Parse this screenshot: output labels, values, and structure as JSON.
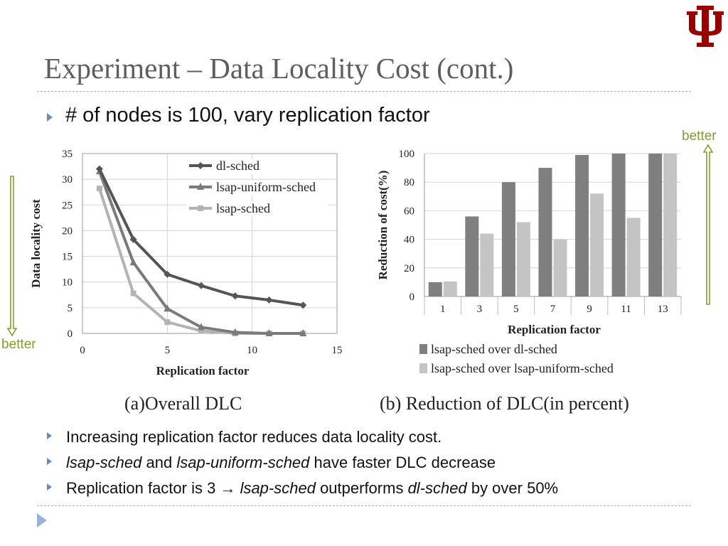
{
  "slide": {
    "title": "Experiment – Data Locality Cost (cont.)",
    "main_bullet": "# of nodes is 100, vary replication factor",
    "better_label": "better",
    "sub_bullets": [
      {
        "parts": [
          {
            "text": "Increasing replication factor reduces data locality cost.",
            "italic": false
          }
        ]
      },
      {
        "parts": [
          {
            "text": "lsap-sched",
            "italic": true
          },
          {
            "text": " and ",
            "italic": false
          },
          {
            "text": "lsap-uniform-sched",
            "italic": true
          },
          {
            "text": " have faster DLC decrease",
            "italic": false
          }
        ]
      },
      {
        "parts": [
          {
            "text": "Replication factor is 3 ",
            "italic": false
          },
          {
            "text": "→",
            "italic": false
          },
          {
            "text": " ",
            "italic": false
          },
          {
            "text": "lsap-sched",
            "italic": true
          },
          {
            "text": " outperforms ",
            "italic": false
          },
          {
            "text": "dl-sched",
            "italic": true
          },
          {
            "text": " by over 50%",
            "italic": false
          }
        ]
      }
    ],
    "logo_color": "#990000",
    "better_color": "#8a9a2b"
  },
  "chart_data": [
    {
      "type": "line",
      "caption": "(a)Overall DLC",
      "xlabel": "Replication factor",
      "ylabel": "Data locality  cost",
      "xlim": [
        0,
        15
      ],
      "ylim": [
        0,
        35
      ],
      "xticks": [
        0,
        5,
        10,
        15
      ],
      "yticks": [
        0,
        5,
        10,
        15,
        20,
        25,
        30,
        35
      ],
      "grid": true,
      "legend": "top-right",
      "series": [
        {
          "name": "dl-sched",
          "color": "#555555",
          "marker": "diamond",
          "points": [
            [
              1,
              32
            ],
            [
              3,
              18.3
            ],
            [
              5,
              11.5
            ],
            [
              7,
              9.3
            ],
            [
              9,
              7.3
            ],
            [
              11,
              6.5
            ],
            [
              13,
              5.5
            ]
          ]
        },
        {
          "name": "lsap-uniform-sched",
          "color": "#7a7a7a",
          "marker": "triangle",
          "points": [
            [
              1,
              31.5
            ],
            [
              3,
              13.8
            ],
            [
              5,
              4.8
            ],
            [
              7,
              1.2
            ],
            [
              9,
              0.2
            ],
            [
              11,
              0
            ],
            [
              13,
              0
            ]
          ]
        },
        {
          "name": "lsap-sched",
          "color": "#b3b3b3",
          "marker": "square",
          "points": [
            [
              1,
              28.2
            ],
            [
              3,
              7.8
            ],
            [
              5,
              2.2
            ],
            [
              7,
              0.5
            ],
            [
              9,
              0
            ],
            [
              11,
              0
            ],
            [
              13,
              0
            ]
          ]
        }
      ]
    },
    {
      "type": "bar",
      "caption": "(b) Reduction of DLC(in percent)",
      "xlabel": "Replication factor",
      "ylabel": "Reduction of cost(%)",
      "ylim": [
        0,
        100
      ],
      "yticks": [
        0,
        20,
        40,
        60,
        80,
        100
      ],
      "grid": true,
      "legend": "bottom",
      "categories": [
        "1",
        "3",
        "5",
        "7",
        "9",
        "11",
        "13"
      ],
      "series": [
        {
          "name": "lsap-sched over dl-sched",
          "color": "#7f7f7f",
          "values": [
            10,
            56,
            80,
            90,
            99,
            100,
            100
          ]
        },
        {
          "name": "lsap-sched over lsap-uniform-sched",
          "color": "#c4c4c4",
          "values": [
            10.5,
            44,
            52,
            40,
            72,
            55,
            100
          ]
        }
      ]
    }
  ]
}
